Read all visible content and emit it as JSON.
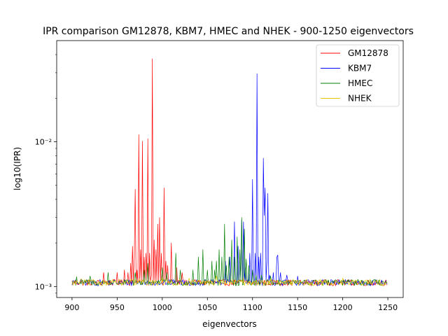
{
  "chart_data": {
    "type": "line",
    "title": "IPR comparison GM12878, KBM7, HMEC and NHEK - 900-1250 eigenvectors",
    "xlabel": "eigenvectors",
    "ylabel": "log10(IPR)",
    "xlim": [
      883,
      1267
    ],
    "ylim": [
      0.00084,
      0.05
    ],
    "yscale": "log",
    "x_ticks": [
      900,
      950,
      1000,
      1050,
      1100,
      1150,
      1200,
      1250
    ],
    "y_ticks": [
      {
        "value": 0.001,
        "label": "10⁻³"
      },
      {
        "value": 0.01,
        "label": "10⁻²"
      }
    ],
    "x_range": [
      900,
      1249
    ],
    "grid": false,
    "legend_position": "top-right",
    "baseline": 0.00106,
    "series": [
      {
        "name": "GM12878",
        "color": "#ff0000",
        "peaks": [
          [
            935,
            0.00125
          ],
          [
            950,
            0.00125
          ],
          [
            958,
            0.0013
          ],
          [
            962,
            0.00125
          ],
          [
            965,
            0.00145
          ],
          [
            967,
            0.0019
          ],
          [
            969,
            0.0016
          ],
          [
            970,
            0.0047
          ],
          [
            972,
            0.0013
          ],
          [
            974,
            0.0112
          ],
          [
            976,
            0.0018
          ],
          [
            978,
            0.0101
          ],
          [
            980,
            0.0016
          ],
          [
            982,
            0.0017
          ],
          [
            984,
            0.0105
          ],
          [
            986,
            0.0017
          ],
          [
            988,
            0.0012
          ],
          [
            989,
            0.0375
          ],
          [
            991,
            0.0021
          ],
          [
            993,
            0.0018
          ],
          [
            995,
            0.0027
          ],
          [
            997,
            0.003
          ],
          [
            999,
            0.0017
          ],
          [
            1002,
            0.0048
          ],
          [
            1004,
            0.0015
          ],
          [
            1006,
            0.0014
          ],
          [
            1010,
            0.002
          ],
          [
            1016,
            0.00135
          ],
          [
            1022,
            0.00125
          ]
        ]
      },
      {
        "name": "KBM7",
        "color": "#0000ff",
        "peaks": [
          [
            1070,
            0.0015
          ],
          [
            1075,
            0.0016
          ],
          [
            1080,
            0.0028
          ],
          [
            1084,
            0.0019
          ],
          [
            1086,
            0.0017
          ],
          [
            1088,
            0.0029
          ],
          [
            1090,
            0.0028
          ],
          [
            1092,
            0.00135
          ],
          [
            1097,
            0.0017
          ],
          [
            1100,
            0.0055
          ],
          [
            1103,
            0.0017
          ],
          [
            1105,
            0.0295
          ],
          [
            1107,
            0.0016
          ],
          [
            1109,
            0.0017
          ],
          [
            1112,
            0.0077
          ],
          [
            1113,
            0.0031
          ],
          [
            1114,
            0.0048
          ],
          [
            1116,
            0.0015
          ],
          [
            1117,
            0.0044
          ],
          [
            1119,
            0.0012
          ],
          [
            1123,
            0.00125
          ],
          [
            1127,
            0.0016
          ],
          [
            1128,
            0.00165
          ],
          [
            1131,
            0.00125
          ],
          [
            1138,
            0.0012
          ],
          [
            1150,
            0.00118
          ]
        ]
      },
      {
        "name": "HMEC",
        "color": "#008000",
        "peaks": [
          [
            905,
            0.00117
          ],
          [
            920,
            0.00118
          ],
          [
            940,
            0.00125
          ],
          [
            970,
            0.00125
          ],
          [
            980,
            0.0013
          ],
          [
            984,
            0.00145
          ],
          [
            1000,
            0.00135
          ],
          [
            1005,
            0.00125
          ],
          [
            1015,
            0.0017
          ],
          [
            1020,
            0.0013
          ],
          [
            1034,
            0.0013
          ],
          [
            1040,
            0.0016
          ],
          [
            1045,
            0.0018
          ],
          [
            1050,
            0.0013
          ],
          [
            1055,
            0.0015
          ],
          [
            1058,
            0.0013
          ],
          [
            1060,
            0.0015
          ],
          [
            1063,
            0.0018
          ],
          [
            1066,
            0.0016
          ],
          [
            1069,
            0.0027
          ],
          [
            1071,
            0.0014
          ],
          [
            1074,
            0.0016
          ],
          [
            1077,
            0.0021
          ],
          [
            1080,
            0.0016
          ],
          [
            1083,
            0.0022
          ],
          [
            1086,
            0.0018
          ],
          [
            1088,
            0.003
          ],
          [
            1091,
            0.0025
          ],
          [
            1093,
            0.00155
          ],
          [
            1096,
            0.0014
          ],
          [
            1100,
            0.0013
          ],
          [
            1104,
            0.0012
          ],
          [
            1110,
            0.0012
          ],
          [
            1120,
            0.00118
          ]
        ]
      },
      {
        "name": "NHEK",
        "color": "#e6c800",
        "peaks": [
          [
            910,
            0.00113
          ],
          [
            945,
            0.00112
          ],
          [
            975,
            0.00113
          ],
          [
            1000,
            0.00115
          ],
          [
            1030,
            0.00114
          ],
          [
            1060,
            0.00118
          ],
          [
            1090,
            0.00115
          ],
          [
            1120,
            0.00113
          ],
          [
            1160,
            0.00112
          ],
          [
            1200,
            0.00114
          ],
          [
            1230,
            0.00112
          ]
        ]
      }
    ]
  }
}
